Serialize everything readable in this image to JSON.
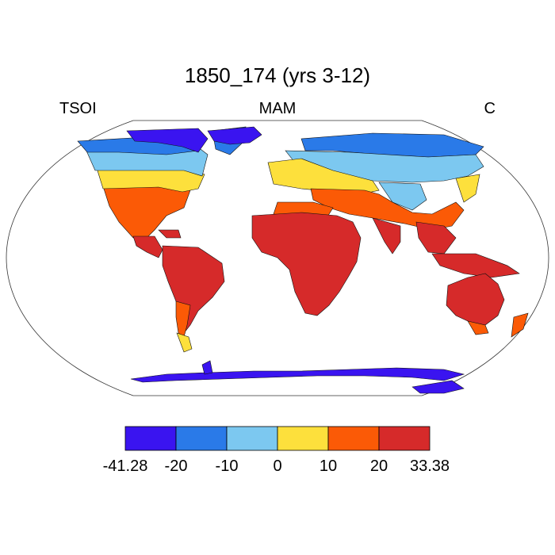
{
  "title": "1850_174 (yrs 3-12)",
  "left_label": "TSOI",
  "center_label": "MAM",
  "right_label": "C",
  "colorbar": {
    "levels": [
      "-41.28",
      "-20",
      "-10",
      "0",
      "10",
      "20",
      "33.38"
    ],
    "colors": [
      "#3a14f0",
      "#2a7ae8",
      "#7cc8f0",
      "#fde03c",
      "#fb5a06",
      "#d62a2a"
    ]
  }
}
